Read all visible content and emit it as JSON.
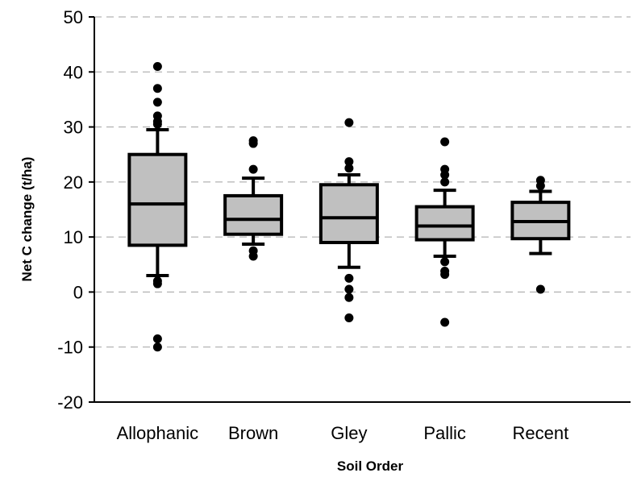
{
  "chart_data": {
    "type": "boxplot",
    "title": "",
    "xlabel": "Soil Order",
    "ylabel": "Net C change (t/ha)",
    "ylim": [
      -20,
      50
    ],
    "yticks": [
      -20,
      -10,
      0,
      10,
      20,
      30,
      40,
      50
    ],
    "grid": "horizontal dashed",
    "legend": "none",
    "colors": {
      "box_fill": "#c0c0c0",
      "stroke": "#000000",
      "grid": "#a0a0a0"
    },
    "categories": [
      "Allophanic",
      "Brown",
      "Gley",
      "Pallic",
      "Recent"
    ],
    "boxes": [
      {
        "category": "Allophanic",
        "whisker_low": 3,
        "q1": 8.5,
        "median": 16,
        "q3": 25,
        "whisker_high": 29.5,
        "outliers": [
          41,
          37,
          34.5,
          32,
          31,
          30.5,
          2,
          1.5,
          -8.5,
          -10
        ]
      },
      {
        "category": "Brown",
        "whisker_low": 8.7,
        "q1": 10.5,
        "median": 13.2,
        "q3": 17.5,
        "whisker_high": 20.7,
        "outliers": [
          27.5,
          27,
          22.3,
          7.5,
          6.5
        ]
      },
      {
        "category": "Gley",
        "whisker_low": 4.5,
        "q1": 9,
        "median": 13.5,
        "q3": 19.5,
        "whisker_high": 21.3,
        "outliers": [
          30.8,
          23.7,
          22.5,
          2.5,
          0.5,
          -1,
          -4.7
        ]
      },
      {
        "category": "Pallic",
        "whisker_low": 6.5,
        "q1": 9.5,
        "median": 12,
        "q3": 15.5,
        "whisker_high": 18.5,
        "outliers": [
          27.3,
          22.3,
          21.3,
          20,
          5.5,
          3.8,
          3.2,
          -5.5
        ]
      },
      {
        "category": "Recent",
        "whisker_low": 7,
        "q1": 9.7,
        "median": 12.8,
        "q3": 16.3,
        "whisker_high": 18.3,
        "outliers": [
          20.3,
          19.3,
          0.5
        ]
      }
    ]
  }
}
